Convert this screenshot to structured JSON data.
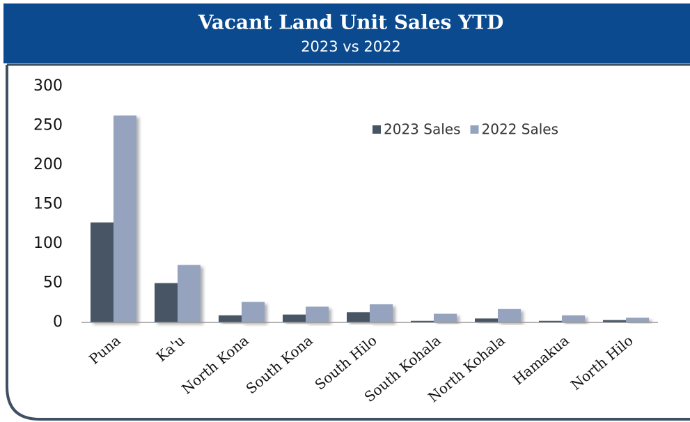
{
  "chart_data": {
    "type": "bar",
    "title": "Vacant Land Unit Sales YTD",
    "subtitle": "2023 vs 2022",
    "categories": [
      "Puna",
      "Ka'u",
      "North Kona",
      "South Kona",
      "South Hilo",
      "South Kohala",
      "North Kohala",
      "Hamakua",
      "North Hilo"
    ],
    "series": [
      {
        "name": "2023 Sales",
        "color": "#465565",
        "values": [
          127,
          50,
          9,
          10,
          13,
          2,
          5,
          2,
          3
        ]
      },
      {
        "name": "2022 Sales",
        "color": "#96a3be",
        "values": [
          263,
          73,
          26,
          20,
          23,
          11,
          17,
          9,
          6
        ]
      }
    ],
    "ylim": [
      0,
      300
    ],
    "yticks": [
      0,
      50,
      100,
      150,
      200,
      250,
      300
    ],
    "grid": false,
    "legend": "top-right"
  }
}
